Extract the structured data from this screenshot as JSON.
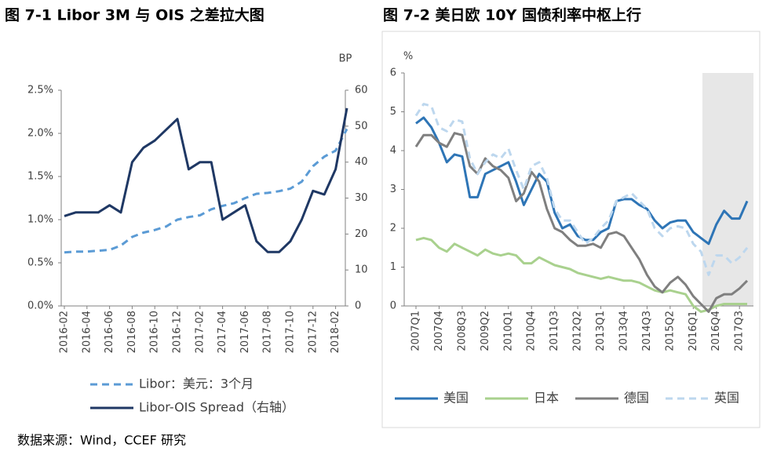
{
  "chart_data": [
    {
      "type": "line",
      "title": "图 7-1 Libor 3M 与 OIS 之差拉大图",
      "y2label": "BP",
      "categories": [
        "2016-02",
        null,
        "2016-04",
        null,
        "2016-06",
        null,
        "2016-08",
        null,
        "2016-10",
        null,
        "2016-12",
        null,
        "2017-02",
        null,
        "2017-04",
        null,
        "2017-06",
        null,
        "2017-08",
        null,
        "2017-10",
        null,
        "2017-12",
        null,
        "2018-02",
        null
      ],
      "ylim": [
        0,
        2.5
      ],
      "yticks": [
        {
          "value": 0,
          "label": "0.0%"
        },
        {
          "value": 0.5,
          "label": "0.5%"
        },
        {
          "value": 1,
          "label": "1.0%"
        },
        {
          "value": 1.5,
          "label": "1.5%"
        },
        {
          "value": 2,
          "label": "2.0%"
        },
        {
          "value": 2.5,
          "label": "2.5%"
        }
      ],
      "y2lim": [
        0,
        60
      ],
      "y2ticks": [
        0,
        10,
        20,
        30,
        40,
        50,
        60
      ],
      "series": [
        {
          "name": "Libor：美元：3个月",
          "color": "#5b9bd5",
          "dash": true,
          "values": [
            0.62,
            0.63,
            0.63,
            0.64,
            0.65,
            0.7,
            0.8,
            0.85,
            0.88,
            0.92,
            1.0,
            1.03,
            1.05,
            1.12,
            1.16,
            1.19,
            1.25,
            1.3,
            1.31,
            1.33,
            1.36,
            1.44,
            1.62,
            1.73,
            1.8,
            2.05
          ]
        },
        {
          "name": "Libor-OIS Spread（右轴）",
          "color": "#1f3864",
          "axis": "y2",
          "values": [
            25,
            26,
            26,
            26,
            28,
            26,
            40,
            44,
            46,
            49,
            52,
            38,
            40,
            40,
            24,
            26,
            28,
            18,
            15,
            15,
            18,
            24,
            32,
            31,
            38,
            55
          ]
        }
      ]
    },
    {
      "type": "line",
      "title": "图 7-2 美日欧 10Y 国债利率中枢上行",
      "ylabel": "%",
      "categories": [
        "2007Q1",
        null,
        null,
        "2007Q4",
        null,
        null,
        "2008Q3",
        null,
        null,
        "2009Q2",
        null,
        null,
        "2010Q1",
        null,
        null,
        "2010Q4",
        null,
        null,
        "2011Q3",
        null,
        null,
        "2012Q2",
        null,
        null,
        "2013Q1",
        null,
        null,
        "2013Q4",
        null,
        null,
        "2014Q3",
        null,
        null,
        "2015Q2",
        null,
        null,
        "2016Q1",
        null,
        null,
        "2016Q4",
        null,
        null,
        "2017Q3",
        null
      ],
      "highlight_from": 38,
      "ylim": [
        0,
        6
      ],
      "yticks": [
        0,
        1,
        2,
        3,
        4,
        5,
        6
      ],
      "series": [
        {
          "name": "美国",
          "color": "#2e75b6",
          "values": [
            4.7,
            4.85,
            4.6,
            4.2,
            3.7,
            3.9,
            3.85,
            2.8,
            2.8,
            3.4,
            3.5,
            3.6,
            3.7,
            3.2,
            2.6,
            3.0,
            3.4,
            3.2,
            2.4,
            2.0,
            2.1,
            1.8,
            1.7,
            1.7,
            1.9,
            2.0,
            2.7,
            2.75,
            2.75,
            2.6,
            2.5,
            2.2,
            2.0,
            2.15,
            2.2,
            2.2,
            1.9,
            1.75,
            1.6,
            2.1,
            2.45,
            2.25,
            2.25,
            2.7
          ]
        },
        {
          "name": "日本",
          "color": "#a9d18e",
          "values": [
            1.7,
            1.75,
            1.7,
            1.5,
            1.4,
            1.6,
            1.5,
            1.4,
            1.3,
            1.45,
            1.35,
            1.3,
            1.35,
            1.3,
            1.1,
            1.1,
            1.25,
            1.15,
            1.05,
            1.0,
            0.95,
            0.85,
            0.8,
            0.75,
            0.7,
            0.75,
            0.7,
            0.65,
            0.65,
            0.6,
            0.5,
            0.4,
            0.35,
            0.4,
            0.35,
            0.3,
            0.0,
            -0.15,
            -0.1,
            0.0,
            0.05,
            0.05,
            0.05,
            0.05
          ]
        },
        {
          "name": "德国",
          "color": "#7f7f7f",
          "values": [
            4.1,
            4.4,
            4.4,
            4.2,
            4.1,
            4.45,
            4.4,
            3.6,
            3.4,
            3.8,
            3.6,
            3.5,
            3.3,
            2.7,
            2.9,
            3.45,
            3.2,
            2.5,
            2.0,
            1.9,
            1.7,
            1.55,
            1.55,
            1.6,
            1.5,
            1.85,
            1.9,
            1.8,
            1.5,
            1.2,
            0.8,
            0.5,
            0.35,
            0.6,
            0.75,
            0.55,
            0.25,
            0.05,
            -0.15,
            0.2,
            0.3,
            0.3,
            0.45,
            0.65
          ]
        },
        {
          "name": "英国",
          "color": "#bdd7ee",
          "dash": true,
          "values": [
            4.9,
            5.2,
            5.15,
            4.6,
            4.5,
            4.8,
            4.75,
            3.8,
            3.4,
            3.7,
            3.9,
            3.8,
            4.05,
            3.5,
            3.0,
            3.6,
            3.7,
            3.3,
            2.5,
            2.2,
            2.2,
            1.9,
            1.6,
            1.75,
            2.0,
            2.2,
            2.7,
            2.8,
            2.9,
            2.7,
            2.5,
            2.0,
            1.8,
            2.0,
            2.05,
            2.0,
            1.6,
            1.4,
            0.8,
            1.3,
            1.3,
            1.1,
            1.25,
            1.5
          ]
        }
      ]
    }
  ],
  "source": "数据来源：Wind，CCEF 研究"
}
